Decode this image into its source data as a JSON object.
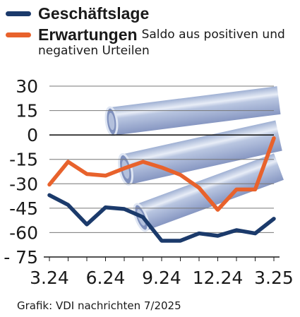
{
  "legend": {
    "series1": {
      "label": "Geschäftslage",
      "color": "#1b3a6b"
    },
    "series2": {
      "label": "Erwartungen",
      "color": "#e8622c"
    },
    "note_line1": "Saldo aus positiven und",
    "note_line2": "negativen Urteilen"
  },
  "source": "Grafik: VDI nachrichten 7/2025",
  "chart_data": {
    "type": "line",
    "x": [
      "3.24",
      "4.24",
      "5.24",
      "6.24",
      "7.24",
      "8.24",
      "9.24",
      "10.24",
      "11.24",
      "12.24",
      "1.25",
      "2.25",
      "3.25"
    ],
    "x_tick_labels": [
      "3.24",
      "6.24",
      "9.24",
      "12.24",
      "3.25"
    ],
    "x_tick_positions": [
      "3.24",
      "6.24",
      "9.24",
      "12.24",
      "3.25"
    ],
    "y_ticks": [
      30,
      15,
      0,
      -15,
      -30,
      -45,
      -60,
      -75
    ],
    "y_tick_labels": [
      "30",
      "15",
      "0",
      "-15",
      "-30",
      "-45",
      "-60",
      "- 75"
    ],
    "ylim": [
      -75,
      30
    ],
    "zero_line": true,
    "grid": "horizontal",
    "series": [
      {
        "name": "Geschäftslage",
        "color": "#1b3a6b",
        "values": [
          -37,
          -43,
          -55,
          -44.5,
          -45.5,
          -50.5,
          -65,
          -65,
          -60.5,
          -62,
          -58.5,
          -60.5,
          -51.5
        ]
      },
      {
        "name": "Erwartungen",
        "color": "#e8622c",
        "values": [
          -30.5,
          -16.5,
          -24,
          -25,
          -20.5,
          -16.5,
          -20,
          -24.5,
          -32.5,
          -46,
          -33.5,
          -33.5,
          -2
        ]
      }
    ]
  }
}
